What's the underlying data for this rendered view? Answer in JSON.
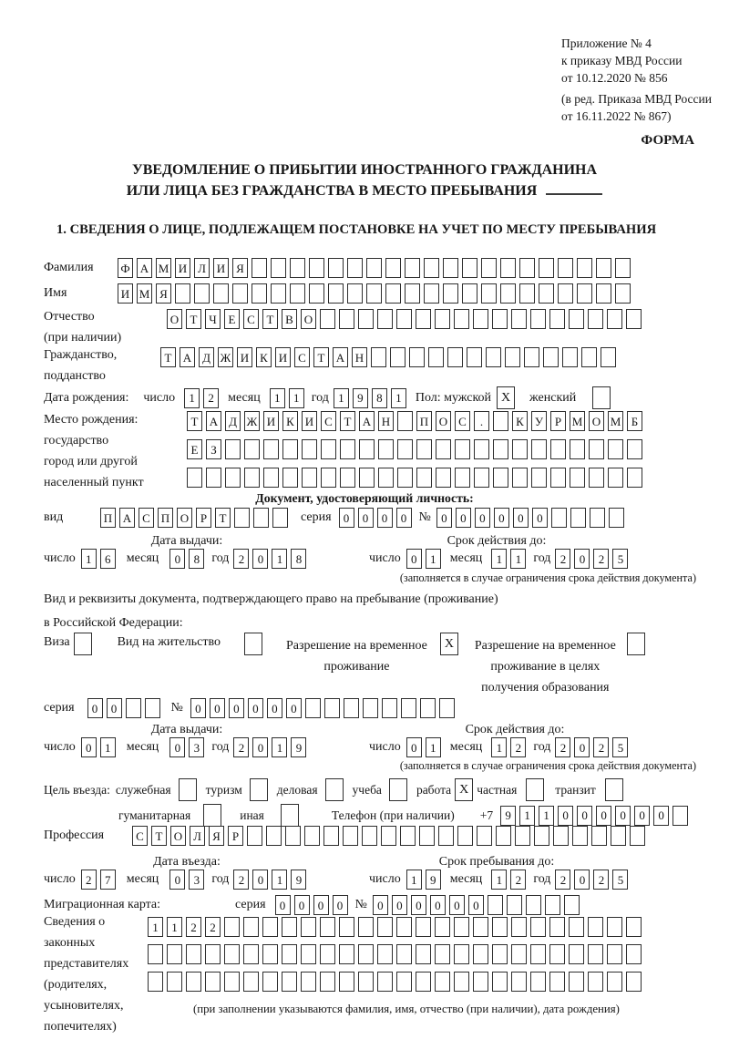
{
  "header": {
    "appendix_lines": [
      "Приложение № 4",
      "к приказу МВД России",
      "от 10.12.2020 № 856"
    ],
    "amendment_lines": [
      "(в ред. Приказа МВД России",
      "от 16.11.2022 № 867)"
    ],
    "form_label": "ФОРМА"
  },
  "title": {
    "line1": "УВЕДОМЛЕНИЕ О ПРИБЫТИИ ИНОСТРАННОГО ГРАЖДАНИНА",
    "line2": "ИЛИ ЛИЦА БЕЗ ГРАЖДАНСТВА В МЕСТО ПРЕБЫВАНИЯ"
  },
  "section1_heading": "1. СВЕДЕНИЯ О ЛИЦЕ, ПОДЛЕЖАЩЕМ ПОСТАНОВКЕ НА УЧЕТ ПО МЕСТУ ПРЕБЫВАНИЯ",
  "labels": {
    "day": "число",
    "month": "месяц",
    "year": "год"
  },
  "fields": {
    "surname": {
      "label": "Фамилия",
      "cells": {
        "v": "ФАМИЛИЯ",
        "n": 27
      }
    },
    "name": {
      "label": "Имя",
      "cells": {
        "v": "ИМЯ",
        "n": 27
      }
    },
    "patronymic": {
      "label": "Отчество",
      "label2": "(при наличии)",
      "cells": {
        "v": "ОТЧЕСТВО",
        "n": 25
      }
    },
    "citizenship": {
      "label": "Гражданство,",
      "label2": "подданство",
      "cells": {
        "v": "ТАДЖИКИСТАН",
        "n": 24
      }
    },
    "birth_date": {
      "label": "Дата рождения:",
      "day": {
        "v": "12",
        "n": 2
      },
      "month": {
        "v": "11",
        "n": 2
      },
      "year": {
        "v": "1981",
        "n": 4
      },
      "sex_label": "Пол: мужской",
      "male": {
        "v": "X",
        "n": 1
      },
      "female_label": "женский",
      "female": {
        "v": "",
        "n": 1
      }
    },
    "birth_place": {
      "labels": [
        "Место рождения:",
        "государство",
        "город или другой",
        "населенный пункт"
      ],
      "row1": {
        "v": "ТАДЖИКИСТАН ПОС. КУРМОМБ",
        "n": 24
      },
      "row2": {
        "v": "ЕЗ",
        "n": 24
      },
      "row3": {
        "v": "",
        "n": 24
      }
    },
    "identity_doc": {
      "heading": "Документ, удостоверяющий личность:",
      "kind_label": "вид",
      "kind": {
        "v": "ПАСПОРТ",
        "n": 10
      },
      "series_label": "серия",
      "series": {
        "v": "0000",
        "n": 4
      },
      "number_label": "№",
      "number": {
        "v": "000000",
        "n": 10
      },
      "issue_heading": "Дата выдачи:",
      "issue_day": {
        "v": "16",
        "n": 2
      },
      "issue_month": {
        "v": "08",
        "n": 2
      },
      "issue_year": {
        "v": "2018",
        "n": 4
      },
      "valid_heading": "Срок действия до:",
      "valid_day": {
        "v": "01",
        "n": 2
      },
      "valid_month": {
        "v": "11",
        "n": 2
      },
      "valid_year": {
        "v": "2025",
        "n": 4
      },
      "note": "(заполняется в случае ограничения срока действия документа)"
    },
    "resident_doc": {
      "line1": "Вид и реквизиты документа, подтверждающего право на пребывание (проживание)",
      "line2": "в Российской Федерации:",
      "visa_label": "Виза",
      "visa": {
        "v": "",
        "n": 1
      },
      "residence_label": "Вид на жительство",
      "residence": {
        "v": "",
        "n": 1
      },
      "temp_label1": "Разрешение на временное",
      "temp_label2": "проживание",
      "temp": {
        "v": "X",
        "n": 1
      },
      "edu_label1": "Разрешение на временное",
      "edu_label2": "проживание в целях",
      "edu_label3": "получения образования",
      "edu": {
        "v": "",
        "n": 1
      },
      "series_label": "серия",
      "series": {
        "v": "00",
        "n": 4
      },
      "number_label": "№",
      "number": {
        "v": "000000",
        "n": 14
      },
      "issue_heading": "Дата выдачи:",
      "issue_day": {
        "v": "01",
        "n": 2
      },
      "issue_month": {
        "v": "03",
        "n": 2
      },
      "issue_year": {
        "v": "2019",
        "n": 4
      },
      "valid_heading": "Срок действия до:",
      "valid_day": {
        "v": "01",
        "n": 2
      },
      "valid_month": {
        "v": "12",
        "n": 2
      },
      "valid_year": {
        "v": "2025",
        "n": 4
      },
      "note": "(заполняется в случае ограничения срока действия документа)"
    },
    "purpose": {
      "label": "Цель въезда:",
      "options": [
        {
          "label": "служебная",
          "v": "",
          "n": 1
        },
        {
          "label": "туризм",
          "v": "",
          "n": 1
        },
        {
          "label": "деловая",
          "v": "",
          "n": 1
        },
        {
          "label": "учеба",
          "v": "",
          "n": 1
        },
        {
          "label": "работа",
          "v": "X",
          "n": 1
        },
        {
          "label": "частная",
          "v": "",
          "n": 1
        },
        {
          "label": "транзит",
          "v": "",
          "n": 1
        }
      ],
      "options2": [
        {
          "label": "гуманитарная",
          "v": "",
          "n": 1
        },
        {
          "label": "иная",
          "v": "",
          "n": 1
        }
      ],
      "phone_label": "Телефон (при наличии)",
      "phone_prefix": "+7",
      "phone": {
        "v": "911000000",
        "n": 10
      }
    },
    "profession": {
      "label": "Профессия",
      "cells": {
        "v": "СТОЛЯР",
        "n": 27
      }
    },
    "entry": {
      "entry_heading": "Дата въезда:",
      "entry_day": {
        "v": "27",
        "n": 2
      },
      "entry_month": {
        "v": "03",
        "n": 2
      },
      "entry_year": {
        "v": "2019",
        "n": 4
      },
      "stay_heading": "Срок пребывания до:",
      "stay_day": {
        "v": "19",
        "n": 2
      },
      "stay_month": {
        "v": "12",
        "n": 2
      },
      "stay_year": {
        "v": "2025",
        "n": 4
      }
    },
    "migration_card": {
      "label": "Миграционная карта:",
      "series_label": "серия",
      "series": {
        "v": "0000",
        "n": 4
      },
      "number_label": "№",
      "number": {
        "v": "000000",
        "n": 11
      }
    },
    "guardians": {
      "labels": [
        "Сведения о",
        "законных",
        "представителях",
        "(родителях,",
        "усыновителях,",
        "попечителях)"
      ],
      "row1": {
        "v": "1122",
        "n": 26
      },
      "row2": {
        "v": "",
        "n": 26
      },
      "row3": {
        "v": "",
        "n": 26
      },
      "note": "(при заполнении указываются фамилия, имя, отчество (при наличии), дата рождения)"
    }
  }
}
